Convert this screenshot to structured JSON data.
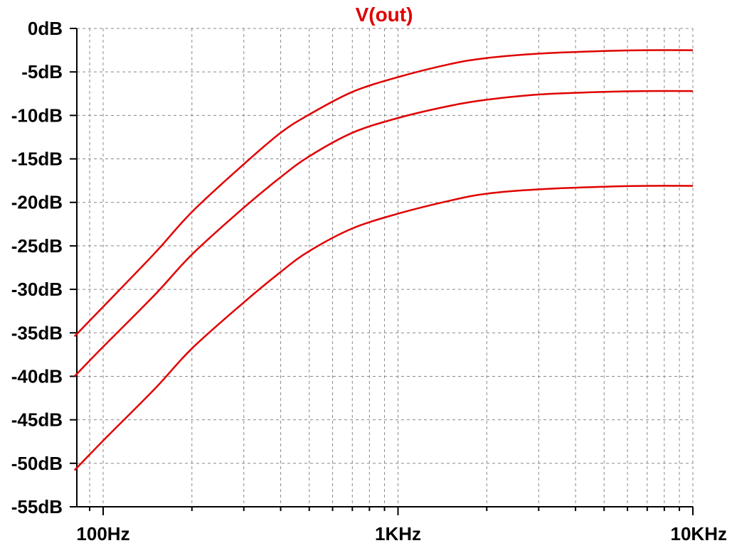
{
  "chart_data": {
    "type": "line",
    "title": "V(out)",
    "xlabel": "",
    "ylabel": "",
    "xscale": "log",
    "xlim": [
      80,
      10000
    ],
    "ylim": [
      -55,
      0
    ],
    "grid": true,
    "line_color": "#e00000",
    "y_ticks": [
      0,
      -5,
      -10,
      -15,
      -20,
      -25,
      -30,
      -35,
      -40,
      -45,
      -50,
      -55
    ],
    "y_tick_labels": [
      "0dB",
      "-5dB",
      "-10dB",
      "-15dB",
      "-20dB",
      "-25dB",
      "-30dB",
      "-35dB",
      "-40dB",
      "-45dB",
      "-50dB",
      "-55dB"
    ],
    "x_ticks": [
      100,
      1000,
      10000
    ],
    "x_tick_labels": [
      "100Hz",
      "1KHz",
      "10KHz"
    ],
    "x": [
      80,
      100,
      150,
      200,
      300,
      400,
      500,
      700,
      1000,
      1500,
      2000,
      3000,
      5000,
      7000,
      10000
    ],
    "series": [
      {
        "values": [
          -35.4,
          -32.0,
          -25.8,
          -21.1,
          -15.6,
          -12.0,
          -9.9,
          -7.3,
          -5.6,
          -4.1,
          -3.4,
          -2.9,
          -2.6,
          -2.5,
          -2.5
        ]
      },
      {
        "values": [
          -40.0,
          -36.6,
          -30.6,
          -26.0,
          -20.6,
          -17.1,
          -14.7,
          -12.0,
          -10.3,
          -8.9,
          -8.2,
          -7.6,
          -7.3,
          -7.2,
          -7.2
        ]
      },
      {
        "values": [
          -50.8,
          -47.4,
          -41.4,
          -36.8,
          -31.5,
          -28.0,
          -25.6,
          -23.0,
          -21.3,
          -19.8,
          -19.0,
          -18.5,
          -18.2,
          -18.1,
          -18.1
        ]
      }
    ]
  }
}
